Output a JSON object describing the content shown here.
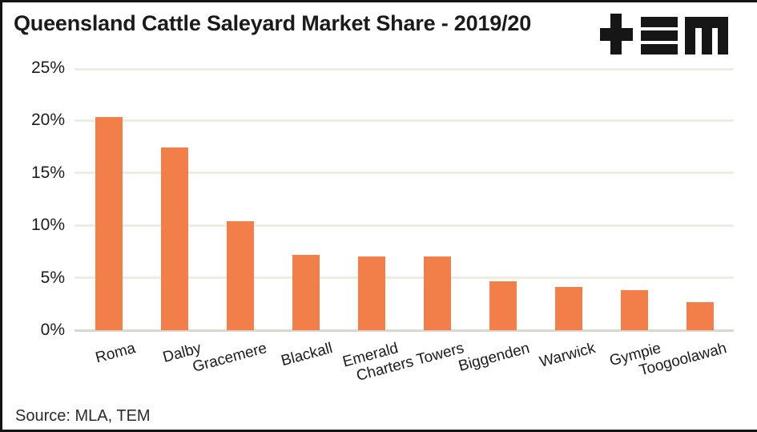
{
  "header": {
    "title": "Queensland Cattle Saleyard Market Share - 2019/20",
    "logo": "tem-logo"
  },
  "chart_data": {
    "type": "bar",
    "title": "Queensland Cattle Saleyard Market Share - 2019/20",
    "categories": [
      "Roma",
      "Dalby",
      "Gracemere",
      "Blackall",
      "Emerald",
      "Charters Towers",
      "Biggenden",
      "Warwick",
      "Gympie",
      "Toogoolawah"
    ],
    "values": [
      20.3,
      17.4,
      10.4,
      7.2,
      7.0,
      7.0,
      4.7,
      4.1,
      3.8,
      2.7
    ],
    "xlabel": "",
    "ylabel": "",
    "ylim": [
      0,
      25
    ],
    "ytick_labels": [
      "0%",
      "5%",
      "10%",
      "15%",
      "20%",
      "25%"
    ],
    "grid": true,
    "legend": "none",
    "bar_color": "#F27E4A",
    "gridline_color": "#EFECE1",
    "baseline_color": "#D9D7CE",
    "label_color": "#1c1c1c"
  },
  "footer": {
    "source": "Source: MLA, TEM"
  }
}
